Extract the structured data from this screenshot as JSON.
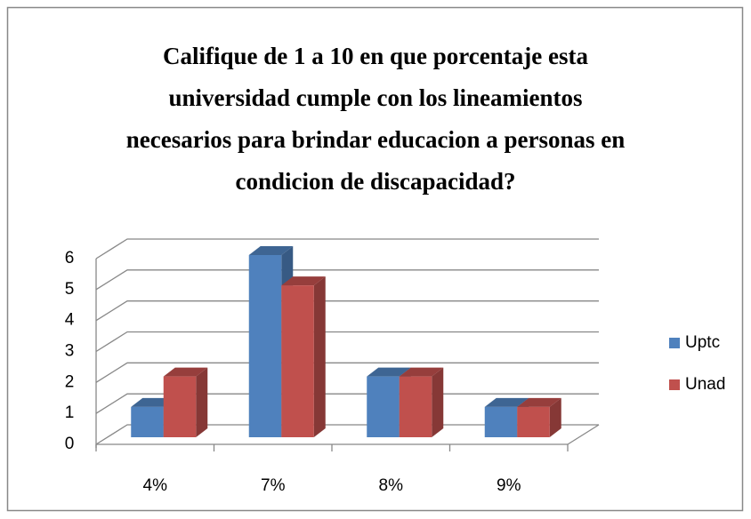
{
  "chart_data": {
    "type": "bar3d",
    "title": "Califique de 1 a 10 en que porcentaje esta universidad cumple con los lineamientos necesarios para brindar educacion a personas en condicion de discapacidad?",
    "categories": [
      "4%",
      "7%",
      "8%",
      "9%"
    ],
    "series": [
      {
        "name": "Uptc",
        "color": "#4f81bd",
        "values": [
          1,
          6,
          2,
          1
        ]
      },
      {
        "name": "Unad",
        "color": "#c0504d",
        "values": [
          2,
          5,
          2,
          1
        ]
      }
    ],
    "ylim": [
      0,
      6
    ],
    "yticks": [
      0,
      1,
      2,
      3,
      4,
      5,
      6
    ],
    "grid": true,
    "legend": "right"
  }
}
